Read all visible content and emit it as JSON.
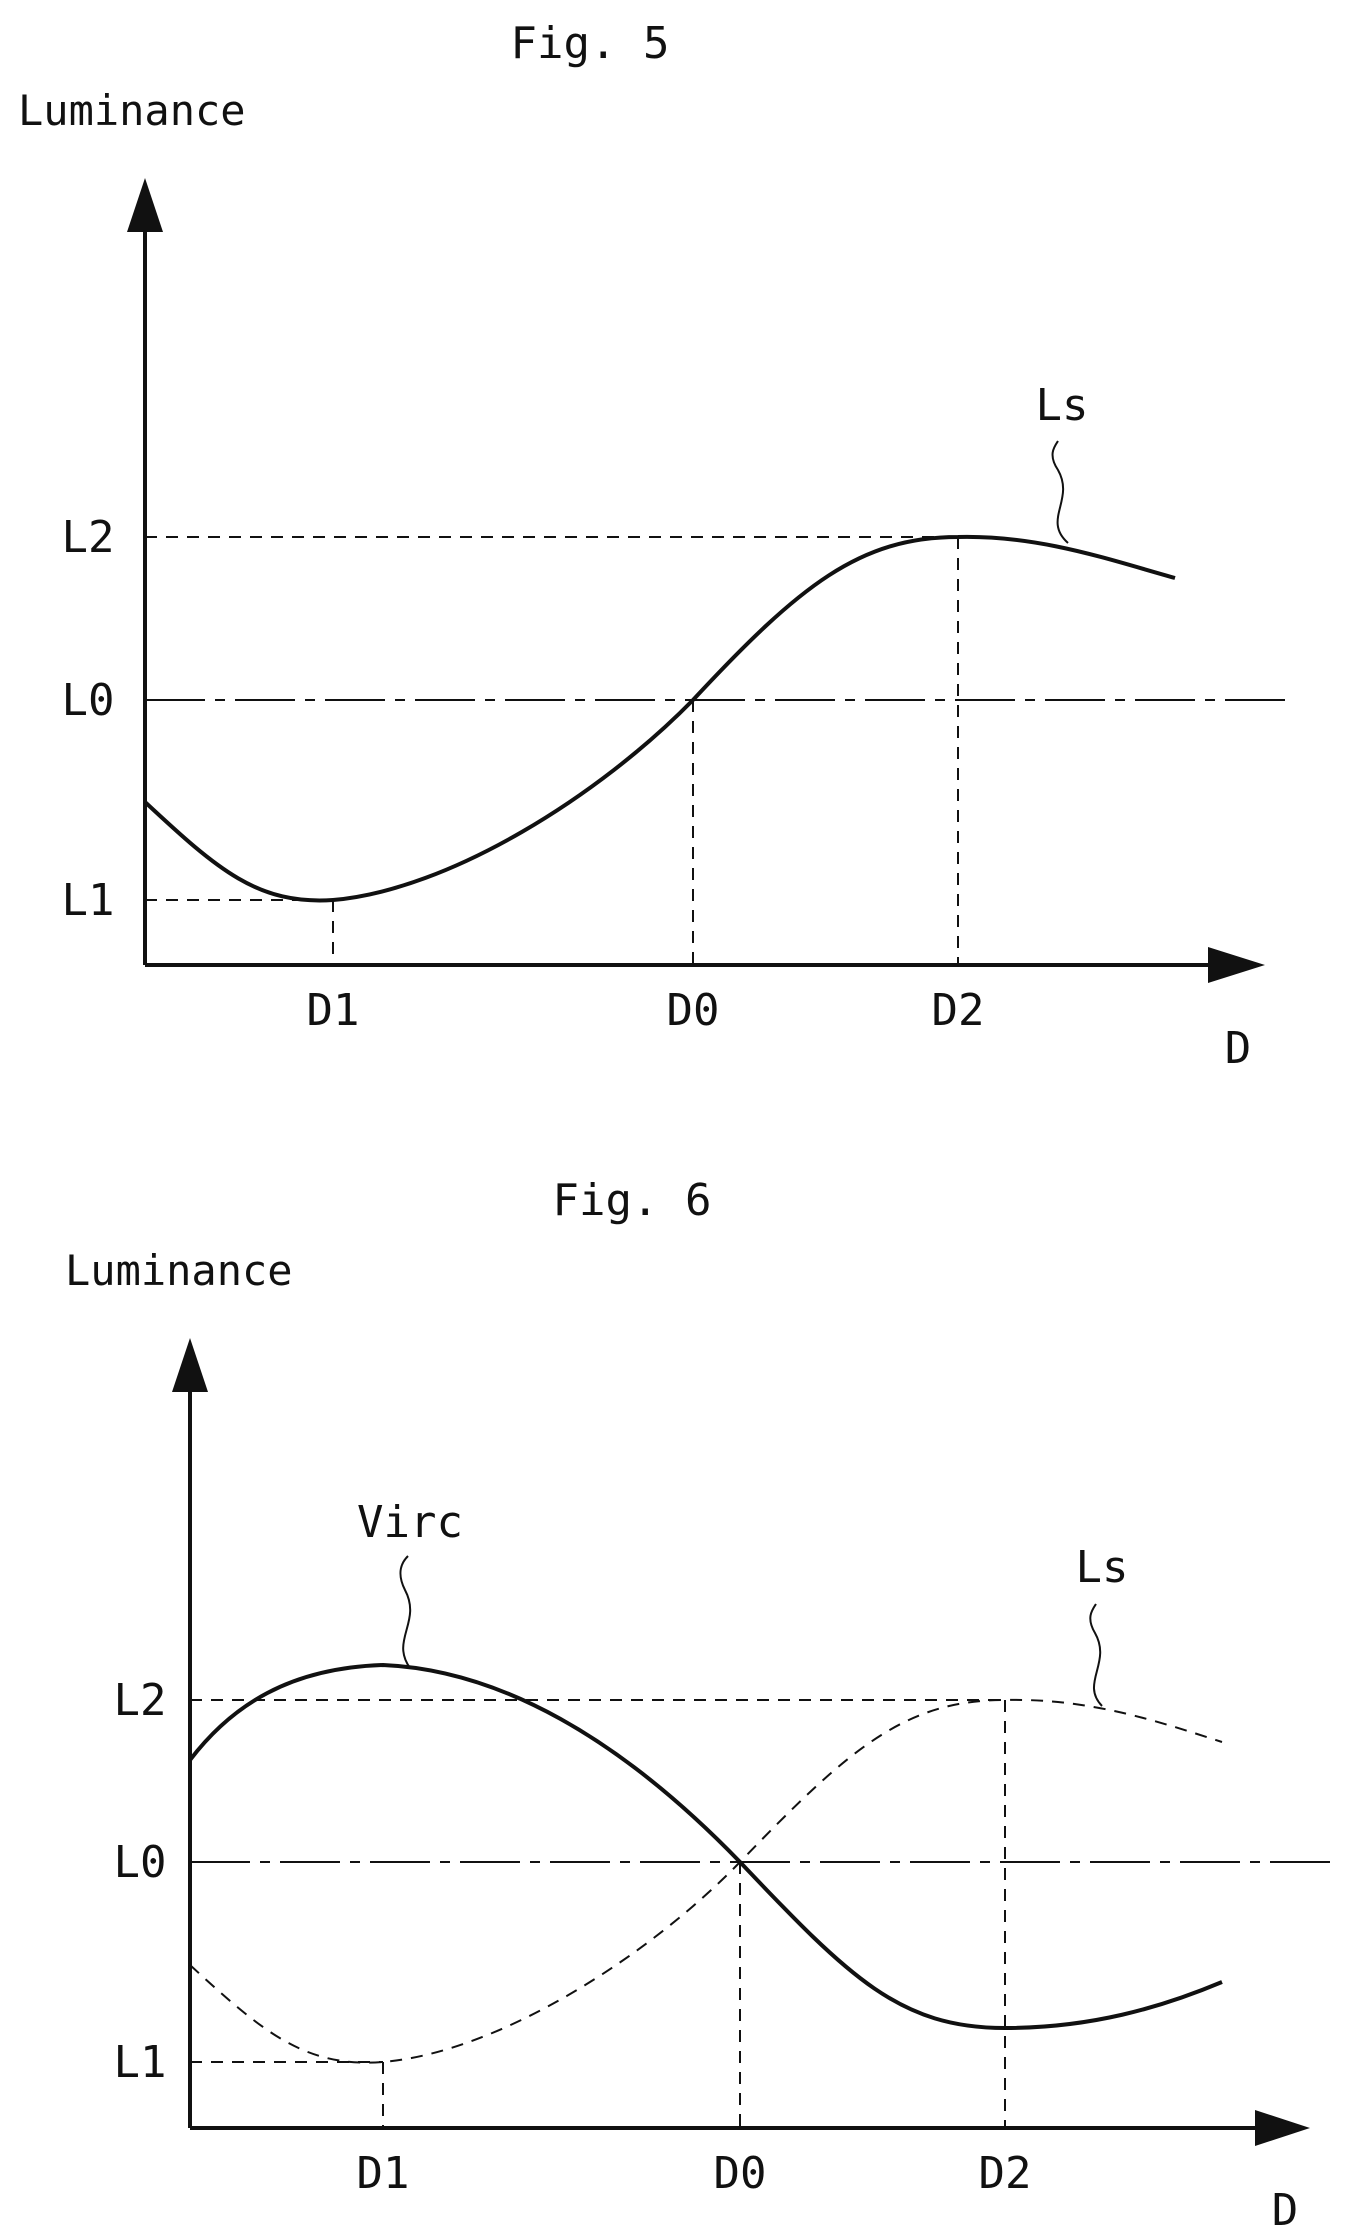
{
  "figures": [
    {
      "title": "Fig. 5",
      "y_axis_label": "Luminance",
      "x_axis_label": "D",
      "x_ticks": [
        "D1",
        "D0",
        "D2"
      ],
      "y_ticks": [
        "L2",
        "L0",
        "L1"
      ],
      "curves": [
        {
          "name": "Ls",
          "style": "solid"
        }
      ]
    },
    {
      "title": "Fig. 6",
      "y_axis_label": "Luminance",
      "x_axis_label": "D",
      "x_ticks": [
        "D1",
        "D0",
        "D2"
      ],
      "y_ticks": [
        "L2",
        "L0",
        "L1"
      ],
      "curves": [
        {
          "name": "Virc",
          "style": "solid"
        },
        {
          "name": "Ls",
          "style": "dashed"
        }
      ]
    }
  ]
}
